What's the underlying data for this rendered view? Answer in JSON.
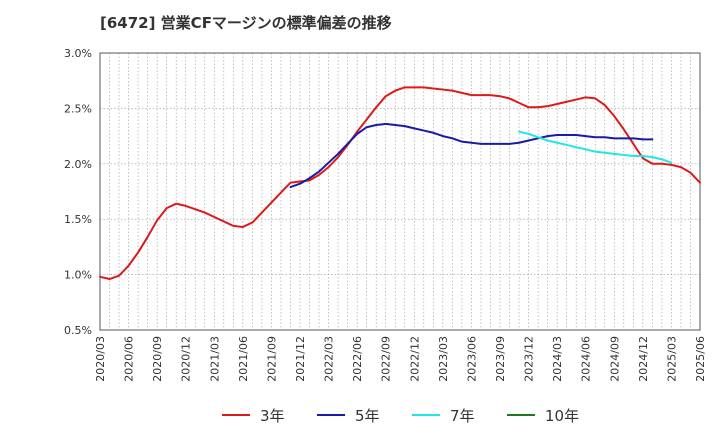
{
  "chart_data": {
    "type": "line",
    "title": "[6472]  営業CFマージンの標準偏差の推移",
    "xlabel": "",
    "ylabel": "",
    "ylim": [
      0.5,
      3.0
    ],
    "y_ticks": [
      "0.5%",
      "1.0%",
      "1.5%",
      "2.0%",
      "2.5%",
      "3.0%"
    ],
    "y_tick_values": [
      0.5,
      1.0,
      1.5,
      2.0,
      2.5,
      3.0
    ],
    "x_ticks": [
      "2020/03",
      "2020/06",
      "2020/09",
      "2020/12",
      "2021/03",
      "2021/06",
      "2021/09",
      "2021/12",
      "2022/03",
      "2022/06",
      "2022/09",
      "2022/12",
      "2023/03",
      "2023/06",
      "2023/09",
      "2023/12",
      "2024/03",
      "2024/06",
      "2024/09",
      "2024/12",
      "2025/03",
      "2025/06"
    ],
    "grid": true,
    "legend_position": "bottom",
    "series": [
      {
        "name": "3年",
        "color": "#dd1a1a",
        "start": "2020/03",
        "values": [
          0.98,
          0.96,
          0.99,
          1.08,
          1.2,
          1.34,
          1.49,
          1.6,
          1.64,
          1.62,
          1.59,
          1.56,
          1.52,
          1.48,
          1.44,
          1.43,
          1.47,
          1.56,
          1.65,
          1.74,
          1.83,
          1.84,
          1.85,
          1.9,
          1.97,
          2.06,
          2.17,
          2.29,
          2.4,
          2.51,
          2.61,
          2.66,
          2.69,
          2.69,
          2.69,
          2.68,
          2.67,
          2.66,
          2.64,
          2.62,
          2.62,
          2.62,
          2.61,
          2.59,
          2.55,
          2.51,
          2.51,
          2.52,
          2.54,
          2.56,
          2.58,
          2.6,
          2.59,
          2.53,
          2.43,
          2.31,
          2.18,
          2.05,
          2.0,
          2.0,
          1.99,
          1.97,
          1.92,
          1.83
        ]
      },
      {
        "name": "5年",
        "color": "#1a1aa8",
        "start": "2021/11",
        "values": [
          1.79,
          1.82,
          1.87,
          1.93,
          2.01,
          2.09,
          2.18,
          2.27,
          2.33,
          2.35,
          2.36,
          2.35,
          2.34,
          2.32,
          2.3,
          2.28,
          2.25,
          2.23,
          2.2,
          2.19,
          2.18,
          2.18,
          2.18,
          2.18,
          2.19,
          2.21,
          2.23,
          2.25,
          2.26,
          2.26,
          2.26,
          2.25,
          2.24,
          2.24,
          2.23,
          2.23,
          2.23,
          2.22,
          2.22
        ]
      },
      {
        "name": "7年",
        "color": "#22e6e6",
        "start": "2023/11",
        "values": [
          2.29,
          2.27,
          2.24,
          2.21,
          2.19,
          2.17,
          2.15,
          2.13,
          2.11,
          2.1,
          2.09,
          2.08,
          2.07,
          2.07,
          2.06,
          2.04,
          2.01
        ]
      },
      {
        "name": "10年",
        "color": "#1f7a1f",
        "start": "2025/03",
        "values": []
      }
    ]
  }
}
